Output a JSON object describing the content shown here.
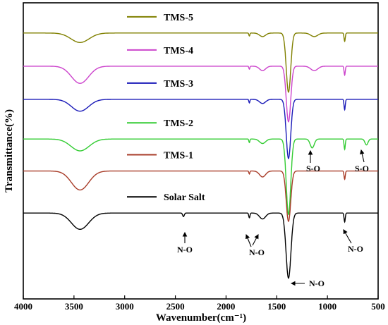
{
  "chart_data": {
    "type": "line",
    "xlabel": "Wavenumber(cm⁻¹)",
    "ylabel": "Transmittance(%)",
    "xlim": [
      4000,
      500
    ],
    "x_reversed": true,
    "x_ticks": [
      4000,
      3500,
      3000,
      2500,
      2000,
      1500,
      1000,
      500
    ],
    "y_ticks_shown": false,
    "grid": false,
    "legend": "inline labels above each offset trace",
    "series": [
      {
        "name": "TMS-5",
        "color": "#808000",
        "baseline": 0.898,
        "features": [
          {
            "center": 3440,
            "width": 90,
            "depth": 0.032
          },
          {
            "center": 1770,
            "width": 5,
            "depth": 0.01
          },
          {
            "center": 1640,
            "width": 30,
            "depth": 0.012
          },
          {
            "center": 1384,
            "width": 22,
            "depth": 0.2
          },
          {
            "center": 1130,
            "width": 35,
            "depth": 0.012
          },
          {
            "center": 830,
            "width": 6,
            "depth": 0.028
          }
        ]
      },
      {
        "name": "TMS-4",
        "color": "#cc44cc",
        "baseline": 0.786,
        "features": [
          {
            "center": 3440,
            "width": 85,
            "depth": 0.058
          },
          {
            "center": 1770,
            "width": 5,
            "depth": 0.01
          },
          {
            "center": 1640,
            "width": 30,
            "depth": 0.015
          },
          {
            "center": 1384,
            "width": 22,
            "depth": 0.188
          },
          {
            "center": 1130,
            "width": 35,
            "depth": 0.015
          },
          {
            "center": 830,
            "width": 6,
            "depth": 0.03
          }
        ]
      },
      {
        "name": "TMS-3",
        "color": "#1a1ab8",
        "baseline": 0.674,
        "features": [
          {
            "center": 3440,
            "width": 85,
            "depth": 0.04
          },
          {
            "center": 1770,
            "width": 5,
            "depth": 0.012
          },
          {
            "center": 1640,
            "width": 30,
            "depth": 0.014
          },
          {
            "center": 1384,
            "width": 22,
            "depth": 0.2
          },
          {
            "center": 830,
            "width": 6,
            "depth": 0.035
          }
        ]
      },
      {
        "name": "TMS-2",
        "color": "#33cc33",
        "baseline": 0.54,
        "features": [
          {
            "center": 3440,
            "width": 90,
            "depth": 0.04
          },
          {
            "center": 1770,
            "width": 5,
            "depth": 0.012
          },
          {
            "center": 1640,
            "width": 30,
            "depth": 0.015
          },
          {
            "center": 1384,
            "width": 22,
            "depth": 0.255
          },
          {
            "center": 1150,
            "width": 20,
            "depth": 0.03
          },
          {
            "center": 830,
            "width": 6,
            "depth": 0.035
          },
          {
            "center": 615,
            "width": 15,
            "depth": 0.02
          }
        ]
      },
      {
        "name": "TMS-1",
        "color": "#a83c28",
        "baseline": 0.432,
        "features": [
          {
            "center": 3440,
            "width": 85,
            "depth": 0.064
          },
          {
            "center": 1770,
            "width": 5,
            "depth": 0.01
          },
          {
            "center": 1640,
            "width": 30,
            "depth": 0.02
          },
          {
            "center": 1384,
            "width": 22,
            "depth": 0.17
          },
          {
            "center": 830,
            "width": 6,
            "depth": 0.028
          }
        ]
      },
      {
        "name": "Solar Salt",
        "color": "#000000",
        "baseline": 0.29,
        "features": [
          {
            "center": 3440,
            "width": 85,
            "depth": 0.055
          },
          {
            "center": 2420,
            "width": 8,
            "depth": 0.012
          },
          {
            "center": 1770,
            "width": 6,
            "depth": 0.016
          },
          {
            "center": 1640,
            "width": 30,
            "depth": 0.02
          },
          {
            "center": 1384,
            "width": 24,
            "depth": 0.22
          },
          {
            "center": 830,
            "width": 6,
            "depth": 0.03
          }
        ]
      }
    ],
    "annotations": [
      {
        "text": "N-O",
        "x": 2420
      },
      {
        "text": "N-O",
        "x": 1640
      },
      {
        "text": "N-O",
        "x": 1384
      },
      {
        "text": "N-O",
        "x": 830
      },
      {
        "text": "S-O",
        "x": 1150
      },
      {
        "text": "S-O",
        "x": 615
      }
    ]
  }
}
